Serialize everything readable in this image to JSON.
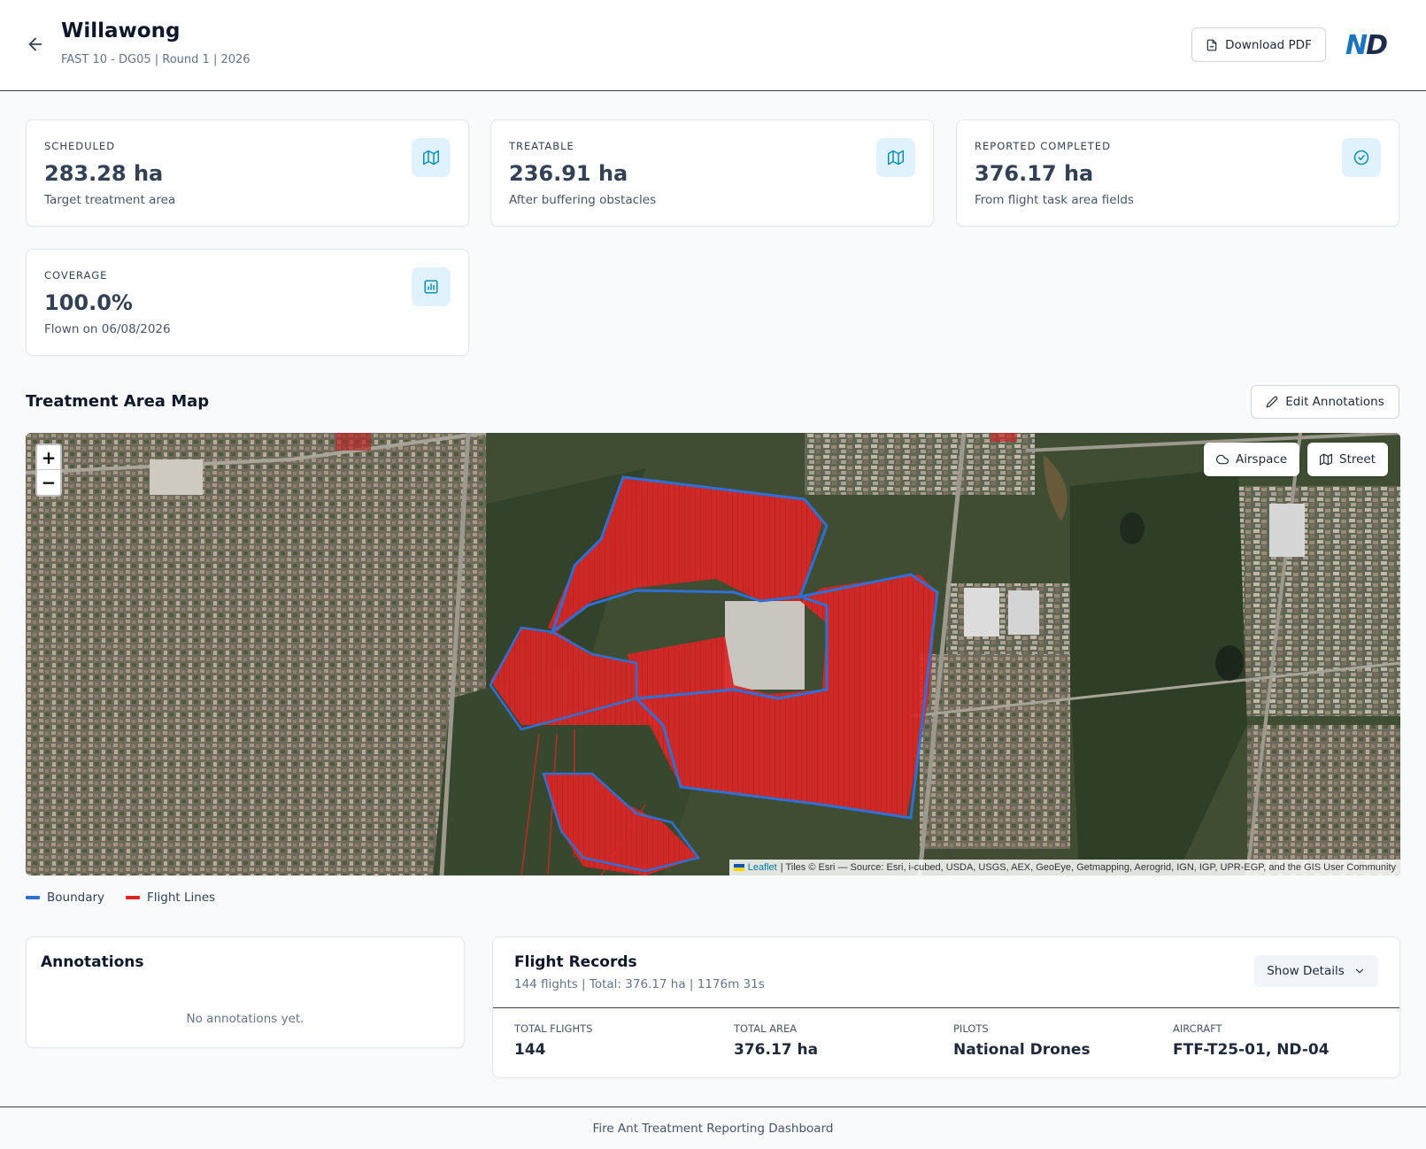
{
  "header": {
    "title": "Willawong",
    "subtitle": "FAST 10 - DG05 | Round 1 | 2026",
    "download_label": "Download PDF",
    "logo_text": "ND"
  },
  "stats": [
    {
      "label": "SCHEDULED",
      "value": "283.28 ha",
      "desc": "Target treatment area",
      "icon": "map-icon"
    },
    {
      "label": "TREATABLE",
      "value": "236.91 ha",
      "desc": "After buffering obstacles",
      "icon": "map-icon"
    },
    {
      "label": "REPORTED COMPLETED",
      "value": "376.17 ha",
      "desc": "From flight task area fields",
      "icon": "check-circle-icon"
    },
    {
      "label": "COVERAGE",
      "value": "100.0%",
      "desc": "Flown on 06/08/2026",
      "icon": "bar-chart-icon"
    }
  ],
  "map_section": {
    "title": "Treatment Area Map",
    "edit_label": "Edit Annotations",
    "zoom_in": "+",
    "zoom_out": "−",
    "layer_airspace": "Airspace",
    "layer_street": "Street",
    "attribution_leaflet": "Leaflet",
    "attribution_text": "| Tiles © Esri — Source: Esri, i-cubed, USDA, USGS, AEX, GeoEye, Getmapping, Aerogrid, IGN, IGP, UPR-EGP, and the GIS User Community",
    "legend": [
      {
        "label": "Boundary",
        "color": "#2f6fd6"
      },
      {
        "label": "Flight Lines",
        "color": "#dc2626"
      }
    ]
  },
  "annotations": {
    "title": "Annotations",
    "empty": "No annotations yet."
  },
  "flight_records": {
    "title": "Flight Records",
    "subtitle": "144 flights | Total: 376.17 ha | 1176m 31s",
    "show_details": "Show Details",
    "stats": [
      {
        "label": "TOTAL FLIGHTS",
        "value": "144"
      },
      {
        "label": "TOTAL AREA",
        "value": "376.17 ha"
      },
      {
        "label": "PILOTS",
        "value": "National Drones"
      },
      {
        "label": "AIRCRAFT",
        "value": "FTF-T25-01, ND-04"
      }
    ]
  },
  "footer": {
    "text": "Fire Ant Treatment Reporting Dashboard"
  },
  "colors": {
    "accent": "#0891b2",
    "icon_bg": "#e0f2fe",
    "boundary": "#2f6fd6",
    "flight_lines": "#dc2626"
  }
}
